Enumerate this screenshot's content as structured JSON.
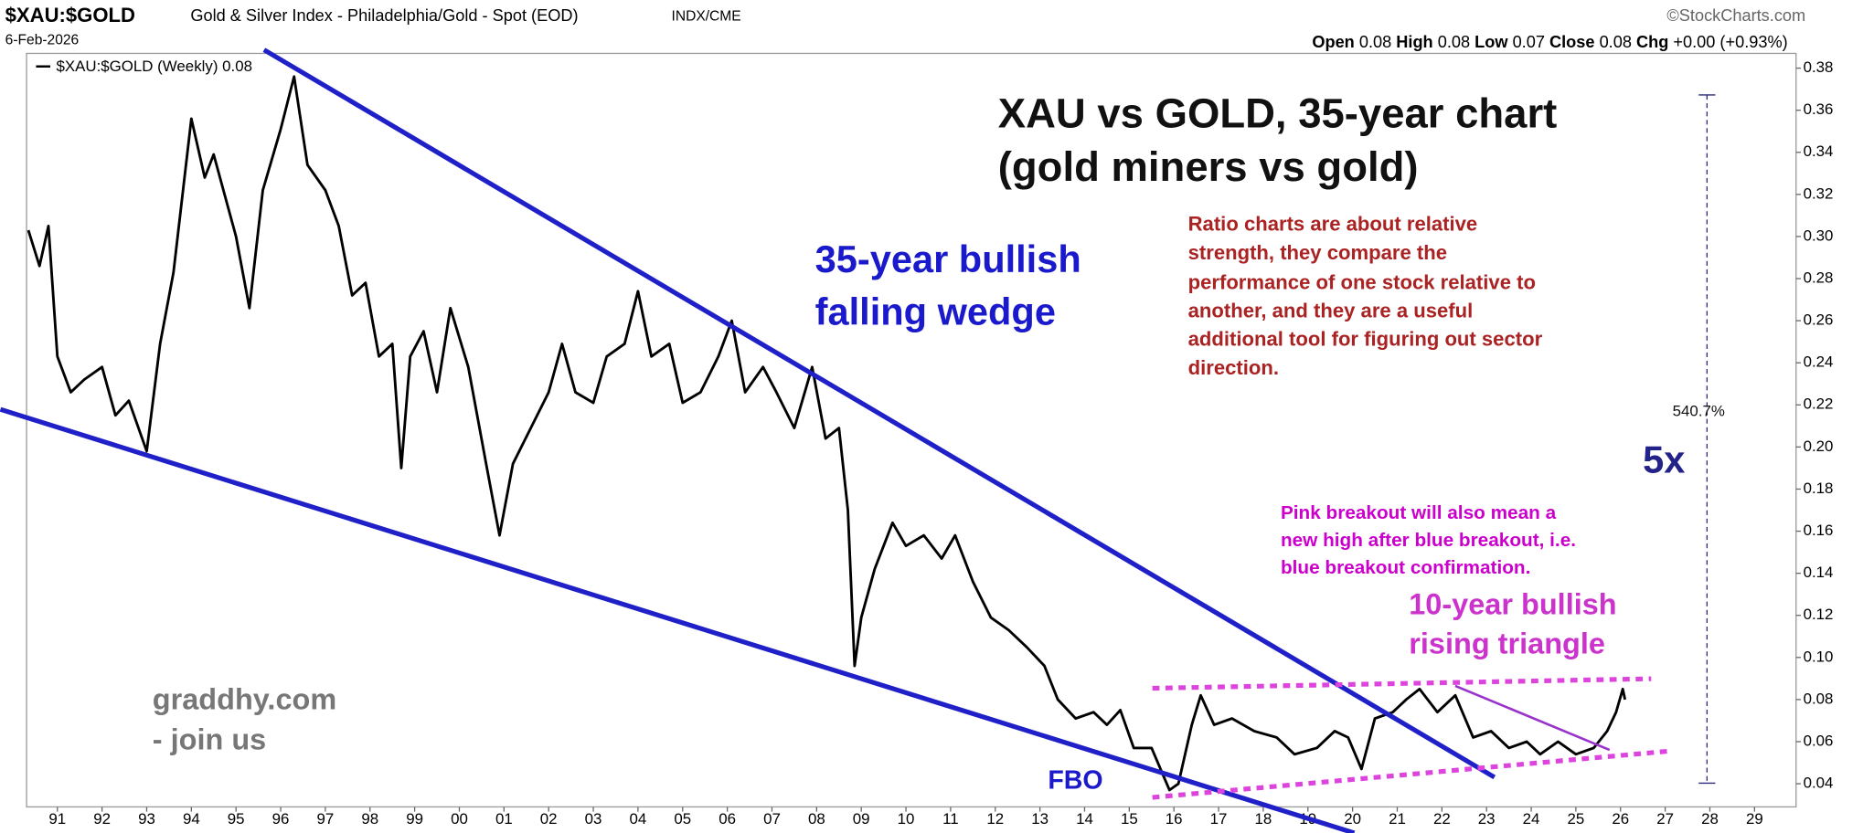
{
  "header": {
    "symbol": "$XAU:$GOLD",
    "description": "Gold & Silver Index - Philadelphia/Gold - Spot (EOD)",
    "exchange": "INDX/CME",
    "source": "©StockCharts.com",
    "date": "6-Feb-2026",
    "open_label": "Open",
    "open": "0.08",
    "high_label": "High",
    "high": "0.08",
    "low_label": "Low",
    "low": "0.07",
    "close_label": "Close",
    "close": "0.08",
    "chg_label": "Chg",
    "chg": "+0.00 (+0.93%)"
  },
  "chart_data": {
    "type": "line",
    "x": [
      1990.35,
      1990.6,
      1990.8,
      1991.0,
      1991.3,
      1991.6,
      1992.0,
      1992.3,
      1992.6,
      1993.0,
      1993.3,
      1993.6,
      1994.0,
      1994.3,
      1994.5,
      1995.0,
      1995.3,
      1995.6,
      1996.0,
      1996.3,
      1996.6,
      1997.0,
      1997.3,
      1997.6,
      1997.9,
      1998.2,
      1998.5,
      1998.7,
      1998.9,
      1999.2,
      1999.5,
      1999.8,
      2000.2,
      2000.6,
      2000.9,
      2001.2,
      2001.6,
      2002.0,
      2002.3,
      2002.6,
      2003.0,
      2003.3,
      2003.7,
      2004.0,
      2004.3,
      2004.7,
      2005.0,
      2005.4,
      2005.8,
      2006.1,
      2006.4,
      2006.8,
      2007.1,
      2007.5,
      2007.9,
      2008.2,
      2008.5,
      2008.7,
      2008.85,
      2009.0,
      2009.3,
      2009.7,
      2010.0,
      2010.4,
      2010.8,
      2011.1,
      2011.5,
      2011.9,
      2012.3,
      2012.7,
      2013.1,
      2013.4,
      2013.8,
      2014.2,
      2014.5,
      2014.8,
      2015.1,
      2015.5,
      2015.9,
      2016.1,
      2016.4,
      2016.6,
      2016.9,
      2017.3,
      2017.8,
      2018.3,
      2018.7,
      2019.2,
      2019.6,
      2019.9,
      2020.2,
      2020.5,
      2020.9,
      2021.2,
      2021.5,
      2021.9,
      2022.3,
      2022.7,
      2023.1,
      2023.5,
      2023.9,
      2024.2,
      2024.6,
      2025.0,
      2025.4,
      2025.7,
      2025.9,
      2026.05,
      2026.1
    ],
    "series": [
      {
        "name": "$XAU:$GOLD (Weekly)",
        "color": "#000000",
        "values": [
          0.303,
          0.286,
          0.305,
          0.243,
          0.226,
          0.232,
          0.238,
          0.215,
          0.222,
          0.198,
          0.249,
          0.283,
          0.356,
          0.328,
          0.339,
          0.3,
          0.266,
          0.322,
          0.351,
          0.376,
          0.334,
          0.322,
          0.305,
          0.272,
          0.278,
          0.243,
          0.249,
          0.19,
          0.243,
          0.255,
          0.226,
          0.266,
          0.238,
          0.192,
          0.158,
          0.192,
          0.209,
          0.226,
          0.249,
          0.226,
          0.221,
          0.243,
          0.249,
          0.274,
          0.243,
          0.249,
          0.221,
          0.226,
          0.243,
          0.26,
          0.226,
          0.238,
          0.226,
          0.209,
          0.238,
          0.204,
          0.209,
          0.17,
          0.096,
          0.119,
          0.142,
          0.164,
          0.153,
          0.158,
          0.147,
          0.158,
          0.136,
          0.119,
          0.113,
          0.105,
          0.096,
          0.08,
          0.071,
          0.074,
          0.068,
          0.075,
          0.057,
          0.057,
          0.037,
          0.04,
          0.068,
          0.082,
          0.068,
          0.071,
          0.065,
          0.062,
          0.054,
          0.057,
          0.065,
          0.062,
          0.047,
          0.071,
          0.074,
          0.08,
          0.085,
          0.074,
          0.082,
          0.062,
          0.065,
          0.057,
          0.06,
          0.054,
          0.06,
          0.054,
          0.057,
          0.065,
          0.074,
          0.085,
          0.08
        ]
      }
    ],
    "xlim": [
      1990.31,
      2029.93
    ],
    "xticks": [
      {
        "value": 1991,
        "label": "91"
      },
      {
        "value": 1992,
        "label": "92"
      },
      {
        "value": 1993,
        "label": "93"
      },
      {
        "value": 1994,
        "label": "94"
      },
      {
        "value": 1995,
        "label": "95"
      },
      {
        "value": 1996,
        "label": "96"
      },
      {
        "value": 1997,
        "label": "97"
      },
      {
        "value": 1998,
        "label": "98"
      },
      {
        "value": 1999,
        "label": "99"
      },
      {
        "value": 2000,
        "label": "00"
      },
      {
        "value": 2001,
        "label": "01"
      },
      {
        "value": 2002,
        "label": "02"
      },
      {
        "value": 2003,
        "label": "03"
      },
      {
        "value": 2004,
        "label": "04"
      },
      {
        "value": 2005,
        "label": "05"
      },
      {
        "value": 2006,
        "label": "06"
      },
      {
        "value": 2007,
        "label": "07"
      },
      {
        "value": 2008,
        "label": "08"
      },
      {
        "value": 2009,
        "label": "09"
      },
      {
        "value": 2010,
        "label": "10"
      },
      {
        "value": 2011,
        "label": "11"
      },
      {
        "value": 2012,
        "label": "12"
      },
      {
        "value": 2013,
        "label": "13"
      },
      {
        "value": 2014,
        "label": "14"
      },
      {
        "value": 2015,
        "label": "15"
      },
      {
        "value": 2016,
        "label": "16"
      },
      {
        "value": 2017,
        "label": "17"
      },
      {
        "value": 2018,
        "label": "18"
      },
      {
        "value": 2019,
        "label": "19"
      },
      {
        "value": 2020,
        "label": "20"
      },
      {
        "value": 2021,
        "label": "21"
      },
      {
        "value": 2022,
        "label": "22"
      },
      {
        "value": 2023,
        "label": "23"
      },
      {
        "value": 2024,
        "label": "24"
      },
      {
        "value": 2025,
        "label": "25"
      },
      {
        "value": 2026,
        "label": "26"
      },
      {
        "value": 2027,
        "label": "27"
      },
      {
        "value": 2028,
        "label": "28"
      },
      {
        "value": 2029,
        "label": "29"
      }
    ],
    "ylim": [
      0.029,
      0.387
    ],
    "yticks": [
      0.04,
      0.06,
      0.08,
      {
        "value": 0.1,
        "label": "0.10"
      },
      0.12,
      0.14,
      0.16,
      0.18,
      {
        "value": 0.2,
        "label": "0.20"
      },
      0.22,
      0.24,
      0.26,
      0.28,
      {
        "value": 0.3,
        "label": "0.30"
      },
      0.32,
      0.34,
      0.36,
      0.38
    ],
    "y_axis_side": "right",
    "grid": false,
    "annotations": {
      "title": [
        "XAU vs GOLD, 35-year chart",
        "(gold miners vs gold)"
      ],
      "note": [
        "Ratio charts are about relative",
        "strength, they compare the",
        "performance of one stock relative to",
        "another, and they are a useful",
        "additional tool for figuring out sector",
        "direction."
      ],
      "wedge": [
        "35-year bullish",
        "falling wedge"
      ],
      "measure": "540.7%",
      "multiple": "5x",
      "pink_note": [
        "Pink breakout will also mean a",
        "new high after blue breakout, i.e.",
        "blue breakout confirmation."
      ],
      "triangle": [
        "10-year bullish",
        "rising triangle"
      ],
      "promo": [
        "graddhy.com",
        "- join us"
      ],
      "fbo": "FBO"
    }
  }
}
